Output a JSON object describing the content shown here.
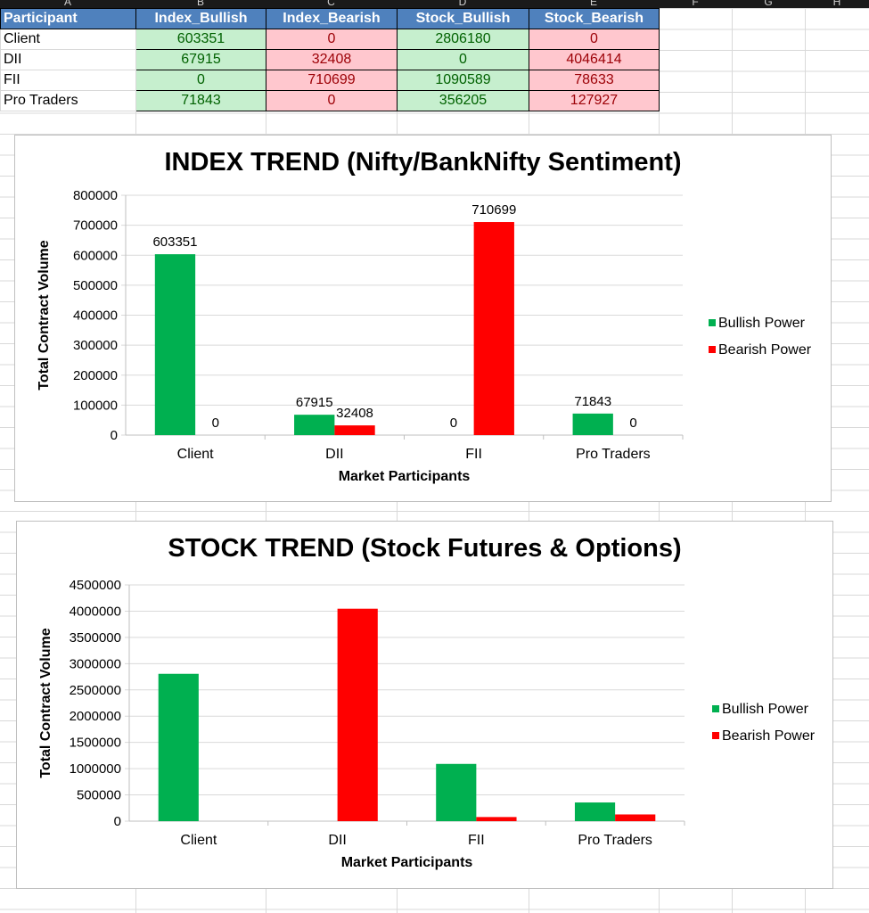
{
  "sheet": {
    "columns": [
      "A",
      "B",
      "C",
      "D",
      "E",
      "F",
      "G",
      "H"
    ],
    "headers": [
      "Participant",
      "Index_Bullish",
      "Index_Bearish",
      "Stock_Bullish",
      "Stock_Bearish"
    ],
    "rows": [
      {
        "participant": "Client",
        "index_bullish": "603351",
        "index_bearish": "0",
        "stock_bullish": "2806180",
        "stock_bearish": "0"
      },
      {
        "participant": "DII",
        "index_bullish": "67915",
        "index_bearish": "32408",
        "stock_bullish": "0",
        "stock_bearish": "4046414"
      },
      {
        "participant": "FII",
        "index_bullish": "0",
        "index_bearish": "710699",
        "stock_bullish": "1090589",
        "stock_bearish": "78633"
      },
      {
        "participant": "Pro Traders",
        "index_bullish": "71843",
        "index_bearish": "0",
        "stock_bullish": "356205",
        "stock_bearish": "127927"
      }
    ]
  },
  "colors": {
    "bullish": "#00b050",
    "bearish": "#ff0000",
    "header_bg": "#4f81bd",
    "bull_cell": "#c6efce",
    "bear_cell": "#ffc7ce"
  },
  "chart_data": [
    {
      "type": "bar",
      "title": "INDEX TREND (Nifty/BankNifty Sentiment)",
      "xlabel": "Market Participants",
      "ylabel": "Total Contract Volume",
      "categories": [
        "Client",
        "DII",
        "FII",
        "Pro Traders"
      ],
      "series": [
        {
          "name": "Bullish Power",
          "color": "#00b050",
          "values": [
            603351,
            67915,
            0,
            71843
          ]
        },
        {
          "name": "Bearish Power",
          "color": "#ff0000",
          "values": [
            0,
            32408,
            710699,
            0
          ]
        }
      ],
      "ylim": [
        0,
        800000
      ],
      "yticks": [
        "0",
        "100000",
        "200000",
        "300000",
        "400000",
        "500000",
        "600000",
        "700000",
        "800000"
      ],
      "data_labels": true,
      "grid": true,
      "legend": "right"
    },
    {
      "type": "bar",
      "title": "STOCK TREND (Stock Futures & Options)",
      "xlabel": "Market Participants",
      "ylabel": "Total Contract Volume",
      "categories": [
        "Client",
        "DII",
        "FII",
        "Pro Traders"
      ],
      "series": [
        {
          "name": "Bullish Power",
          "color": "#00b050",
          "values": [
            2806180,
            0,
            1090589,
            356205
          ]
        },
        {
          "name": "Bearish Power",
          "color": "#ff0000",
          "values": [
            0,
            4046414,
            78633,
            127927
          ]
        }
      ],
      "ylim": [
        0,
        4500000
      ],
      "yticks": [
        "0",
        "500000",
        "1000000",
        "1500000",
        "2000000",
        "2500000",
        "3000000",
        "3500000",
        "4000000",
        "4500000"
      ],
      "data_labels": false,
      "grid": true,
      "legend": "right"
    }
  ]
}
